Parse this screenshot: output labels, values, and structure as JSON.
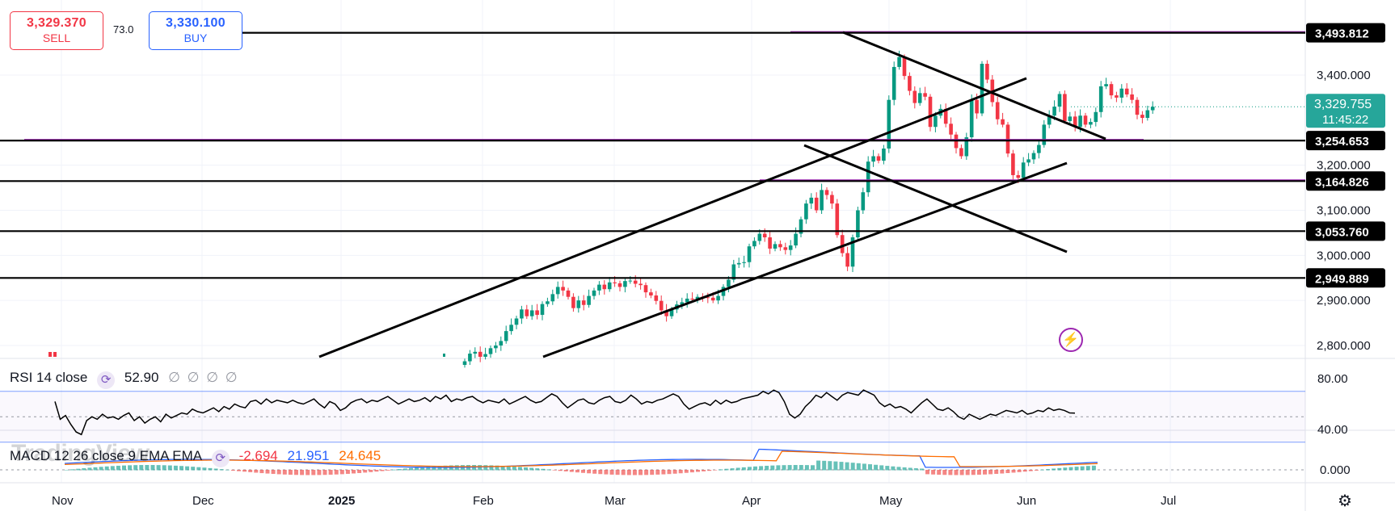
{
  "trade": {
    "sell_price": "3,329.370",
    "sell_label": "SELL",
    "buy_price": "3,330.100",
    "buy_label": "BUY",
    "spread": "73.0"
  },
  "watermark": "TradingView",
  "price_axis": {
    "ticks": [
      {
        "value": 3400,
        "label": "3,400.000"
      },
      {
        "value": 3200,
        "label": "3,200.000"
      },
      {
        "value": 3100,
        "label": "3,100.000"
      },
      {
        "value": 3000,
        "label": "3,000.000"
      },
      {
        "value": 2900,
        "label": "2,900.000"
      },
      {
        "value": 2800,
        "label": "2,800.000"
      }
    ],
    "current_price": "3,329.755",
    "countdown": "11:45:22"
  },
  "levels": [
    {
      "value": 3493.812,
      "label": "3,493.812"
    },
    {
      "value": 3254.653,
      "label": "3,254.653"
    },
    {
      "value": 3164.826,
      "label": "3,164.826"
    },
    {
      "value": 3053.76,
      "label": "3,053.760"
    },
    {
      "value": 2949.889,
      "label": "2,949.889"
    }
  ],
  "time_axis": [
    "Nov",
    "Dec",
    "2025",
    "Feb",
    "Mar",
    "Apr",
    "May",
    "Jun",
    "Jul"
  ],
  "rsi": {
    "legend": "RSI 14 close",
    "value": "52.90",
    "placeholders": "∅ ∅ ∅ ∅",
    "ticks": [
      "80.00",
      "40.00"
    ],
    "series": [
      62,
      48,
      51,
      44,
      38,
      36,
      47,
      50,
      48,
      52,
      49,
      50,
      48,
      51,
      53,
      47,
      50,
      45,
      48,
      50,
      46,
      52,
      49,
      51,
      53,
      52,
      56,
      54,
      53,
      55,
      57,
      54,
      58,
      56,
      60,
      58,
      57,
      62,
      63,
      60,
      64,
      61,
      63,
      62,
      61,
      63,
      61,
      60,
      62,
      64,
      60,
      57,
      62,
      60,
      55,
      57,
      61,
      63,
      64,
      61,
      63,
      62,
      64,
      66,
      63,
      60,
      62,
      64,
      62,
      63,
      65,
      62,
      66,
      64,
      67,
      62,
      64,
      63,
      65,
      66,
      63,
      61,
      63,
      62,
      61,
      64,
      60,
      62,
      64,
      66,
      63,
      61,
      62,
      65,
      68,
      66,
      61,
      57,
      60,
      63,
      64,
      61,
      60,
      63,
      65,
      66,
      62,
      61,
      63,
      67,
      64,
      60,
      62,
      61,
      63,
      64,
      66,
      68,
      66,
      60,
      56,
      58,
      60,
      61,
      59,
      63,
      60,
      63,
      61,
      62,
      64,
      65,
      66,
      67,
      70,
      68,
      71,
      69,
      62,
      52,
      49,
      52,
      58,
      62,
      67,
      65,
      69,
      66,
      63,
      67,
      69,
      68,
      67,
      71,
      69,
      67,
      61,
      58,
      60,
      57,
      58,
      56,
      53,
      57,
      61,
      64,
      60,
      56,
      55,
      57,
      54,
      50,
      48,
      52,
      50,
      48,
      50,
      52,
      51,
      53,
      55,
      54,
      53,
      55,
      52,
      53,
      55,
      54,
      57,
      55,
      56,
      55,
      53,
      52.9
    ]
  },
  "macd": {
    "legend": "MACD 12 26 close 9 EMA EMA",
    "histogram": "-2.694",
    "macd": "21.951",
    "signal": "24.645",
    "tick": "0.000"
  },
  "chart_data": {
    "type": "candlestick",
    "x_labels": [
      "Nov",
      "Dec",
      "2025",
      "Feb",
      "Mar",
      "Apr",
      "May",
      "Jun",
      "Jul"
    ],
    "y_ticks": [
      2800,
      2900,
      3000,
      3100,
      3200,
      3400
    ],
    "ylim": [
      2777,
      3530
    ],
    "horizontal_levels": [
      3493.812,
      3254.653,
      3164.826,
      3053.76,
      2949.889
    ],
    "last_close": 3329.755,
    "closes": [
      2765,
      2782,
      2786,
      2775,
      2781,
      2794,
      2800,
      2810,
      2832,
      2846,
      2860,
      2880,
      2865,
      2878,
      2868,
      2892,
      2898,
      2914,
      2930,
      2922,
      2908,
      2883,
      2900,
      2890,
      2910,
      2922,
      2935,
      2925,
      2940,
      2938,
      2930,
      2943,
      2944,
      2937,
      2934,
      2918,
      2911,
      2899,
      2878,
      2865,
      2880,
      2891,
      2896,
      2904,
      2902,
      2908,
      2907,
      2906,
      2900,
      2910,
      2930,
      2946,
      2980,
      2983,
      2985,
      3020,
      3032,
      3048,
      3040,
      3015,
      3025,
      3018,
      3012,
      3022,
      3048,
      3080,
      3115,
      3128,
      3100,
      3145,
      3134,
      3115,
      3045,
      3005,
      2975,
      3040,
      3100,
      3140,
      3208,
      3220,
      3210,
      3237,
      3345,
      3418,
      3440,
      3398,
      3365,
      3338,
      3360,
      3352,
      3285,
      3310,
      3325,
      3292,
      3268,
      3238,
      3220,
      3262,
      3345,
      3315,
      3425,
      3390,
      3340,
      3302,
      3290,
      3226,
      3178,
      3172,
      3206,
      3213,
      3227,
      3245,
      3290,
      3310,
      3330,
      3358,
      3298,
      3308,
      3285,
      3310,
      3290,
      3296,
      3318,
      3375,
      3380,
      3355,
      3350,
      3370,
      3357,
      3345,
      3312,
      3305,
      3322,
      3329.755
    ]
  }
}
